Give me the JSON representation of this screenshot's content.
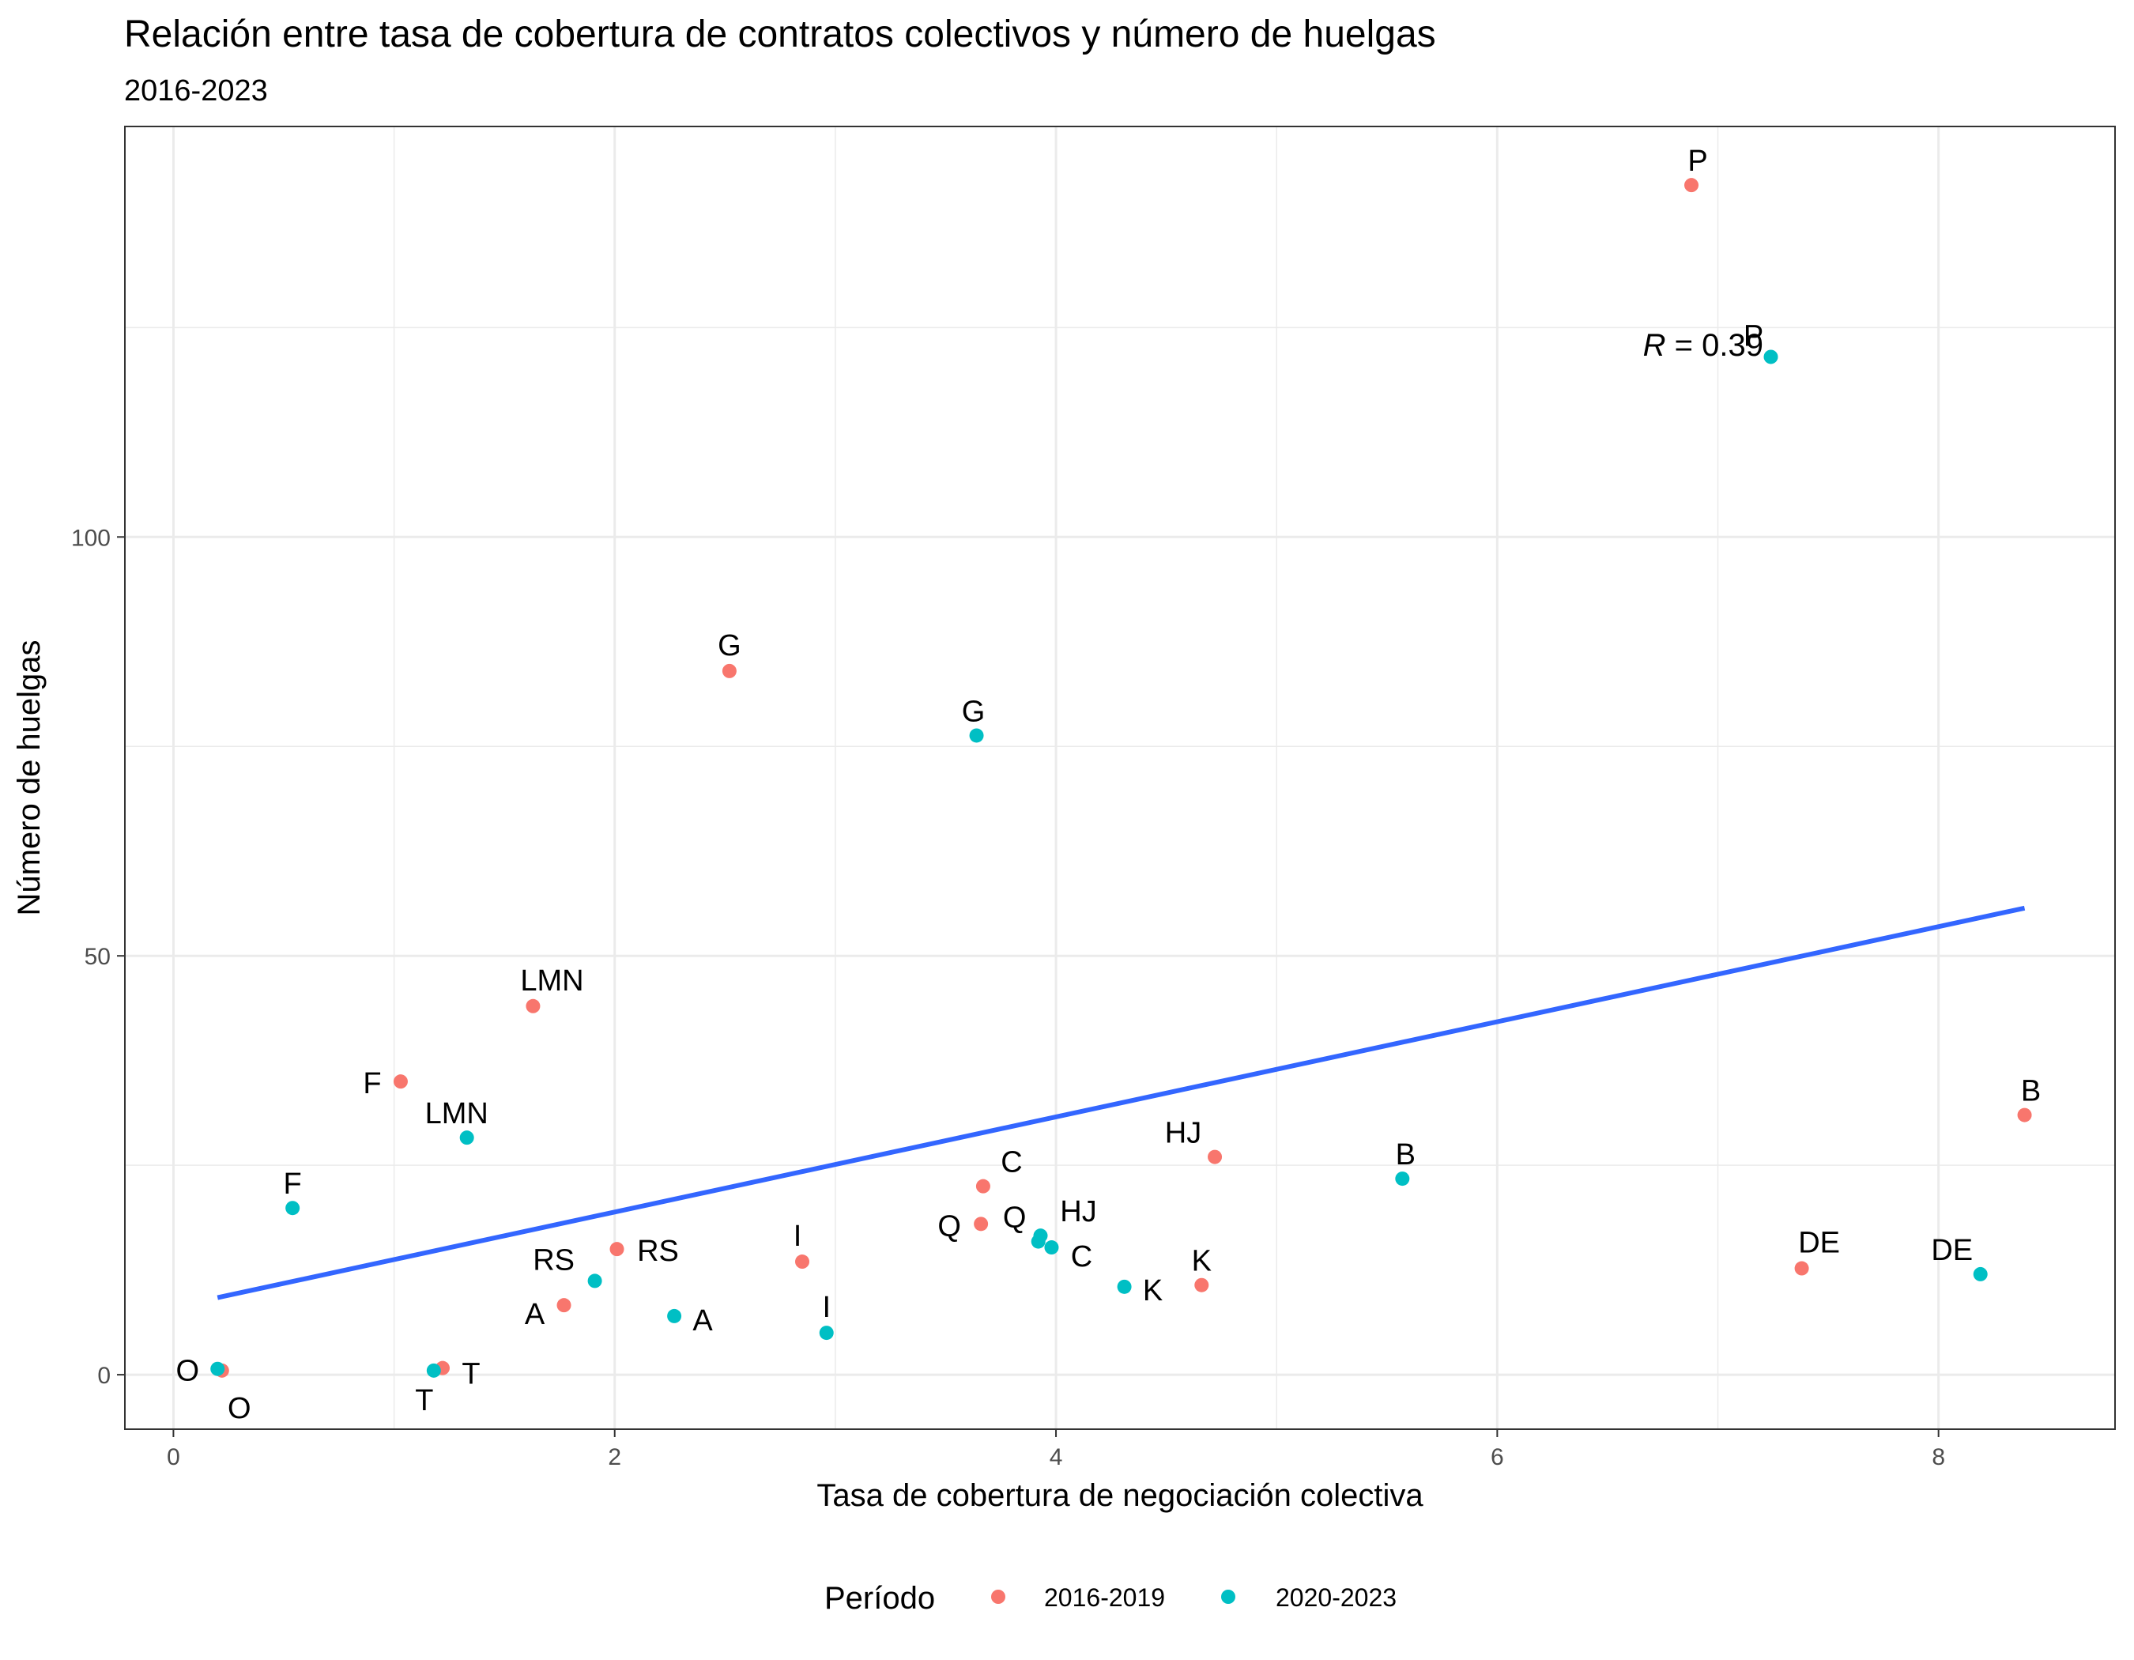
{
  "chart_data": {
    "type": "scatter",
    "title": "Relación entre tasa de cobertura de contratos colectivos y número de huelgas",
    "subtitle": "2016-2023",
    "xlabel": "Tasa de cobertura de negociación colectiva",
    "ylabel": "Número de huelgas",
    "xlim": [
      -0.22,
      8.8
    ],
    "ylim": [
      -6.5,
      149
    ],
    "x_ticks": [
      0,
      2,
      4,
      6,
      8
    ],
    "y_ticks": [
      0,
      50,
      100
    ],
    "grid": true,
    "legend": {
      "title": "Período",
      "position": "bottom"
    },
    "annotation": {
      "label_italic": "R",
      "label_rest": " = 0.39"
    },
    "series": [
      {
        "name": "2016-2019",
        "color": "#F8766D",
        "points": [
          {
            "label": "P",
            "x": 6.88,
            "y": 142
          },
          {
            "label": "G",
            "x": 2.52,
            "y": 84
          },
          {
            "label": "LMN",
            "x": 1.63,
            "y": 44
          },
          {
            "label": "F",
            "x": 1.03,
            "y": 35
          },
          {
            "label": "B",
            "x": 8.39,
            "y": 31
          },
          {
            "label": "HJ",
            "x": 4.72,
            "y": 26
          },
          {
            "label": "C",
            "x": 3.67,
            "y": 22.5
          },
          {
            "label": "Q",
            "x": 3.66,
            "y": 18
          },
          {
            "label": "RS",
            "x": 2.01,
            "y": 15
          },
          {
            "label": "I",
            "x": 2.85,
            "y": 13.5
          },
          {
            "label": "DE",
            "x": 7.38,
            "y": 12.7
          },
          {
            "label": "K",
            "x": 4.66,
            "y": 10.7
          },
          {
            "label": "A",
            "x": 1.77,
            "y": 8.3
          },
          {
            "label": "T",
            "x": 1.22,
            "y": 0.8
          },
          {
            "label": "O",
            "x": 0.22,
            "y": 0.5
          }
        ]
      },
      {
        "name": "2020-2023",
        "color": "#00BFC4",
        "points": [
          {
            "label": "P",
            "x": 7.24,
            "y": 121.5
          },
          {
            "label": "G",
            "x": 3.64,
            "y": 76.3
          },
          {
            "label": "LMN",
            "x": 1.33,
            "y": 28.3
          },
          {
            "label": "B",
            "x": 5.57,
            "y": 23.4
          },
          {
            "label": "F",
            "x": 0.54,
            "y": 19.9
          },
          {
            "label": "HJ",
            "x": 3.93,
            "y": 16.6
          },
          {
            "label": "Q",
            "x": 3.92,
            "y": 15.9
          },
          {
            "label": "C",
            "x": 3.98,
            "y": 15.2
          },
          {
            "label": "DE",
            "x": 8.19,
            "y": 12
          },
          {
            "label": "RS",
            "x": 1.91,
            "y": 11.2
          },
          {
            "label": "K",
            "x": 4.31,
            "y": 10.5
          },
          {
            "label": "A",
            "x": 2.27,
            "y": 7
          },
          {
            "label": "I",
            "x": 2.96,
            "y": 5
          },
          {
            "label": "T",
            "x": 1.18,
            "y": 0.5
          },
          {
            "label": "O",
            "x": 0.2,
            "y": 0.7
          }
        ]
      }
    ],
    "trend_line": {
      "color": "#3366FF",
      "x": [
        0.2,
        8.39
      ],
      "y": [
        9.2,
        55.7
      ]
    }
  }
}
